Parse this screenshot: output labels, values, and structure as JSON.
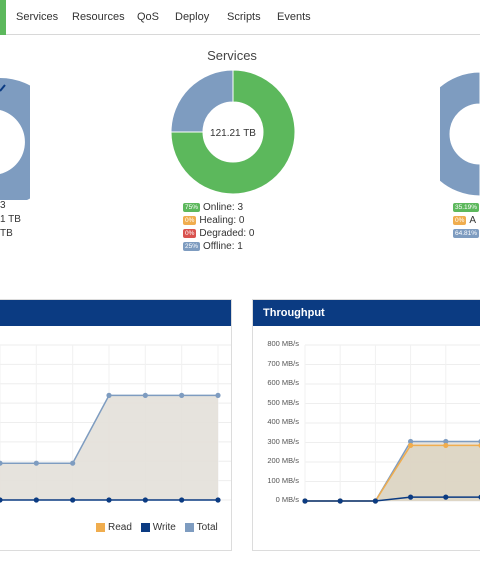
{
  "nav": {
    "items": [
      "Services",
      "Resources",
      "QoS",
      "Deploy",
      "Scripts",
      "Events"
    ]
  },
  "services_card": {
    "title": "Services",
    "center_label": "121.21 TB",
    "legend": [
      {
        "badge": "75%",
        "label": "Online: 3",
        "color": "#5cb85c"
      },
      {
        "badge": "0%",
        "label": "Healing: 0",
        "color": "#f0ad4e"
      },
      {
        "badge": "0%",
        "label": "Degraded: 0",
        "color": "#d9534f"
      },
      {
        "badge": "25%",
        "label": "Offline: 1",
        "color": "#7e9cc0"
      }
    ],
    "slices": [
      {
        "label": "Online",
        "percent": 75,
        "color": "#5cb85c"
      },
      {
        "label": "Offline",
        "percent": 25,
        "color": "#7e9cc0"
      }
    ]
  },
  "left_card": {
    "fragments": [
      "3",
      "1 TB",
      "TB"
    ]
  },
  "right_card": {
    "badges": [
      {
        "badge": "35.19%",
        "label": "A",
        "color": "#5cb85c"
      },
      {
        "badge": "0%",
        "label": "A",
        "color": "#f0ad4e"
      },
      {
        "badge": "64.81%",
        "label": "",
        "color": "#7e9cc0"
      }
    ]
  },
  "charts": {
    "throughput": {
      "title": "Throughput",
      "y_ticks": [
        "800 MB/s",
        "700 MB/s",
        "600 MB/s",
        "500 MB/s",
        "400 MB/s",
        "300 MB/s",
        "200 MB/s",
        "100 MB/s",
        "0 MB/s"
      ]
    },
    "legend": {
      "read": "Read",
      "write": "Write",
      "total": "Total"
    },
    "colors": {
      "read": "#f0ad4e",
      "write": "#0b3b82",
      "total": "#7e9cc0"
    }
  },
  "chart_data": [
    {
      "type": "area",
      "title": "",
      "ylim": [
        0,
        800
      ],
      "x": [
        0,
        1,
        2,
        3,
        4,
        5,
        6
      ],
      "series": [
        {
          "name": "Total",
          "values": [
            190,
            190,
            190,
            540,
            540,
            540,
            540
          ]
        },
        {
          "name": "Write",
          "values": [
            0,
            0,
            0,
            0,
            0,
            0,
            0
          ]
        }
      ]
    },
    {
      "type": "area",
      "title": "Throughput",
      "ylim": [
        0,
        800
      ],
      "x": [
        0,
        1,
        2,
        3,
        4,
        5
      ],
      "series": [
        {
          "name": "Total",
          "values": [
            0,
            0,
            0,
            305,
            305,
            305
          ]
        },
        {
          "name": "Read",
          "values": [
            0,
            0,
            0,
            285,
            285,
            285
          ]
        },
        {
          "name": "Write",
          "values": [
            0,
            0,
            0,
            20,
            20,
            20
          ]
        }
      ]
    }
  ]
}
